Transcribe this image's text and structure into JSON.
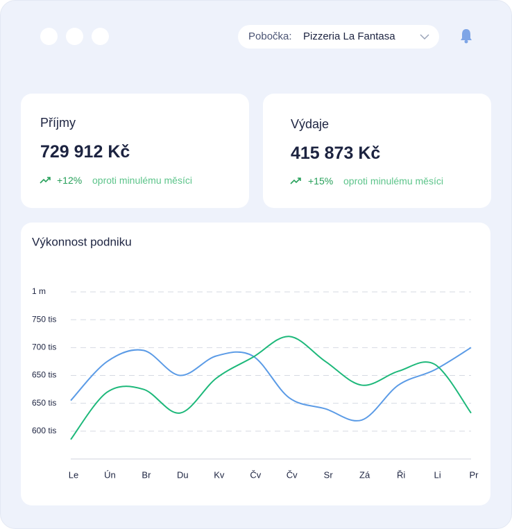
{
  "header": {
    "branch_label": "Pobočka:",
    "branch": "Pizzeria La Fantasa"
  },
  "cards": [
    {
      "title": "Příjmy",
      "value": "729 912 Kč",
      "change": "+12%",
      "note": "oproti minulému měsíci"
    },
    {
      "title": "Výdaje",
      "value": "415 873 Kč",
      "change": "+15%",
      "note": "oproti minulému měsíci"
    }
  ],
  "chart_data": {
    "type": "line",
    "title": "Výkonnost podniku",
    "categories": [
      "Le",
      "Ún",
      "Br",
      "Du",
      "Kv",
      "Čv",
      "Čv",
      "Sr",
      "Zá",
      "Ři",
      "Li",
      "Pr"
    ],
    "ylim": [
      0,
      6
    ],
    "yticks": [
      1,
      2,
      3,
      4,
      5,
      6
    ],
    "ytick_labels": [
      "600 tis",
      "650 tis",
      "650 tis",
      "700 tis",
      "750 tis",
      "1 m"
    ],
    "grid": true,
    "series": [
      {
        "color": "#5b9be6",
        "values": [
          2.1,
          3.5,
          3.9,
          3.0,
          3.7,
          3.7,
          2.2,
          1.8,
          1.4,
          2.65,
          3.2,
          4.0
        ]
      },
      {
        "color": "#1db87a",
        "values": [
          0.7,
          2.4,
          2.5,
          1.65,
          2.9,
          3.65,
          4.4,
          3.5,
          2.65,
          3.15,
          3.4,
          1.65
        ]
      }
    ]
  }
}
